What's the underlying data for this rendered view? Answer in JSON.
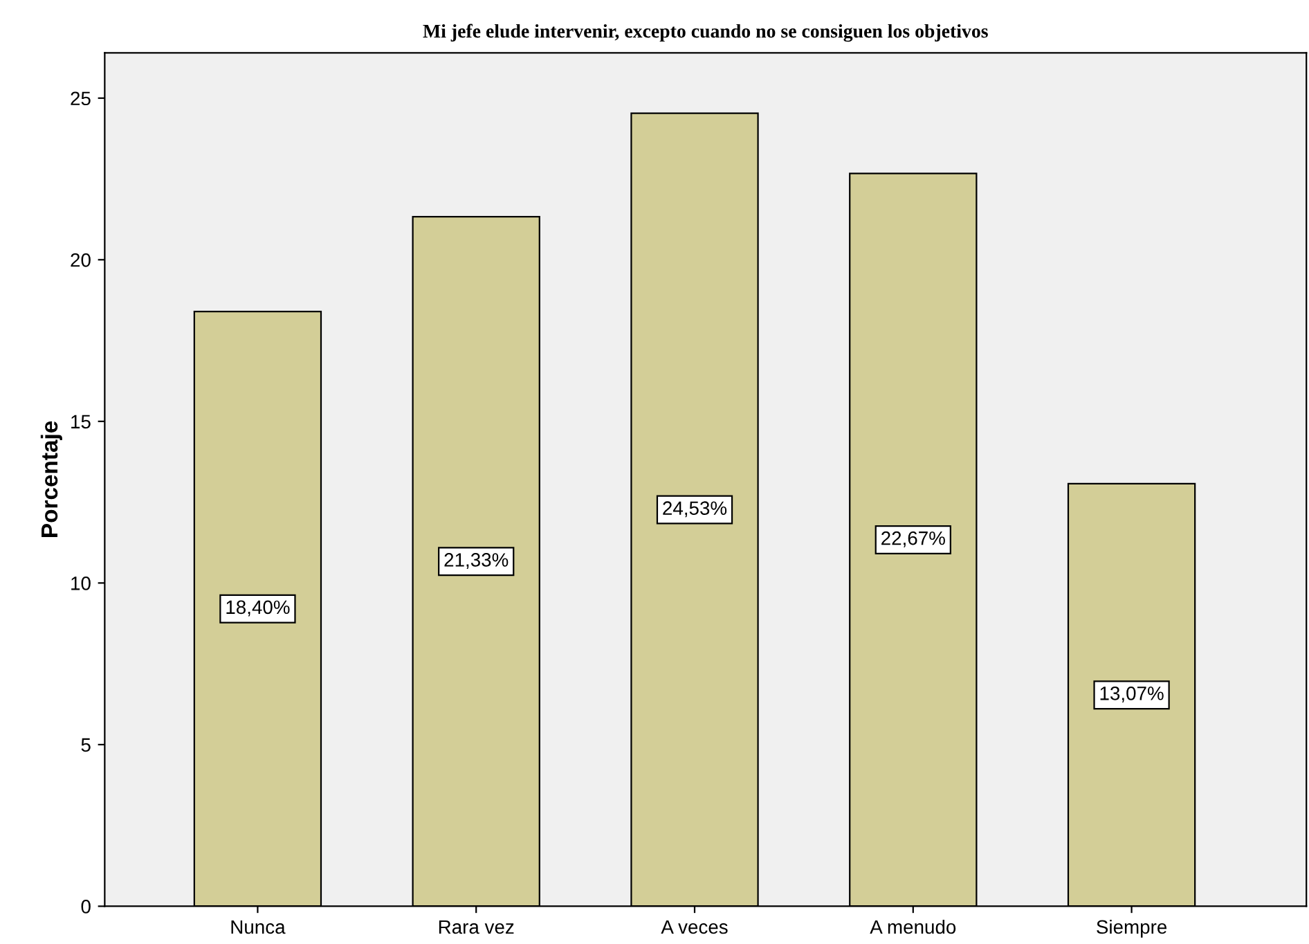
{
  "chart_data": {
    "type": "bar",
    "title": "Mi jefe elude intervenir, excepto cuando no se consiguen los objetivos",
    "ylabel": "Porcentaje",
    "categories": [
      "Nunca",
      "Rara vez",
      "A veces",
      "A menudo",
      "Siempre"
    ],
    "values": [
      18.4,
      21.33,
      24.53,
      22.67,
      13.07
    ],
    "value_labels": [
      "18,40%",
      "21,33%",
      "24,53%",
      "22,67%",
      "13,07%"
    ],
    "color": "#d3ce97",
    "ylim": [
      0,
      26.4
    ],
    "yticks": [
      0,
      5,
      10,
      15,
      20,
      25
    ],
    "grid": false
  }
}
